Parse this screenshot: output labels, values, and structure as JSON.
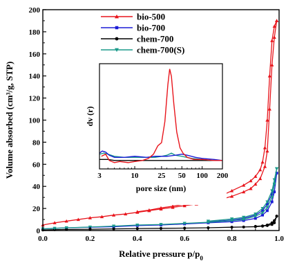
{
  "chart_data": [
    {
      "type": "line",
      "xlabel": "Relative pressure p/p",
      "xlabel_sub": "0",
      "ylabel": "Volume absorbed (cm³/g, STP)",
      "xlim": [
        0.0,
        1.0
      ],
      "ylim": [
        0,
        200
      ],
      "xticks": [
        "0.0",
        "0.2",
        "0.4",
        "0.6",
        "0.8",
        "1.0"
      ],
      "yticks": [
        "0",
        "20",
        "40",
        "60",
        "80",
        "100",
        "120",
        "140",
        "160",
        "180",
        "200"
      ],
      "legend_position": "top-center",
      "grid": false,
      "series": [
        {
          "name": "bio-500",
          "color": "#e8141b",
          "marker": "triangle-up",
          "adsorption": {
            "x": [
              0.0,
              0.05,
              0.1,
              0.15,
              0.2,
              0.25,
              0.3,
              0.35,
              0.4,
              0.45,
              0.5,
              0.55,
              0.6,
              0.65,
              0.7,
              0.75,
              0.8,
              0.85,
              0.88,
              0.9,
              0.92,
              0.94,
              0.95,
              0.96,
              0.97,
              0.98,
              0.99
            ],
            "y": [
              5,
              7,
              8.5,
              10,
              11.5,
              12.5,
              14,
              15,
              16.5,
              18,
              19.5,
              21,
              22.5,
              24,
              26,
              28,
              31,
              35,
              38,
              42,
              47,
              58,
              72,
              110,
              150,
              175,
              190
            ]
          },
          "desorption": {
            "x": [
              0.99,
              0.98,
              0.97,
              0.96,
              0.95,
              0.94,
              0.93,
              0.92,
              0.9,
              0.88,
              0.85,
              0.8,
              0.75,
              0.7,
              0.65,
              0.6,
              0.55,
              0.5,
              0.45,
              0.4
            ],
            "y": [
              190,
              185,
              172,
              140,
              100,
              75,
              62,
              55,
              49,
              45,
              41,
              36,
              31,
              28,
              26,
              24,
              22,
              20.5,
              18.5,
              17
            ]
          }
        },
        {
          "name": "bio-700",
          "color": "#1b1bd6",
          "marker": "square",
          "adsorption": {
            "x": [
              0.0,
              0.05,
              0.1,
              0.2,
              0.3,
              0.4,
              0.5,
              0.6,
              0.7,
              0.8,
              0.85,
              0.9,
              0.93,
              0.95,
              0.97,
              0.98,
              0.99
            ],
            "y": [
              1.5,
              2,
              2.5,
              3,
              3.5,
              4.5,
              5,
              6,
              7,
              8,
              9,
              11,
              14,
              18,
              26,
              35,
              52
            ]
          },
          "desorption": {
            "x": [
              0.99,
              0.98,
              0.97,
              0.95,
              0.93,
              0.9,
              0.85,
              0.8,
              0.7
            ],
            "y": [
              52,
              42,
              33,
              24,
              18,
              14,
              11,
              9.5,
              8
            ]
          }
        },
        {
          "name": "chem-700",
          "color": "#000000",
          "marker": "circle",
          "adsorption": {
            "x": [
              0.0,
              0.05,
              0.1,
              0.2,
              0.3,
              0.4,
              0.5,
              0.6,
              0.7,
              0.8,
              0.85,
              0.9,
              0.93,
              0.95,
              0.97,
              0.98,
              0.99
            ],
            "y": [
              0.5,
              0.8,
              1,
              1.2,
              1.5,
              1.8,
              2,
              2.2,
              2.5,
              3,
              3.2,
              3.5,
              4,
              4.5,
              5.5,
              7,
              13
            ]
          },
          "desorption": {
            "x": [
              0.99,
              0.98,
              0.97,
              0.95,
              0.93,
              0.9
            ],
            "y": [
              13,
              9,
              7,
              5,
              4.2,
              3.8
            ]
          }
        },
        {
          "name": "chem-700(S)",
          "color": "#1a9a8a",
          "marker": "triangle-down",
          "adsorption": {
            "x": [
              0.0,
              0.05,
              0.1,
              0.2,
              0.3,
              0.4,
              0.5,
              0.6,
              0.7,
              0.8,
              0.85,
              0.9,
              0.93,
              0.95,
              0.97,
              0.98,
              0.99
            ],
            "y": [
              1.5,
              2,
              2.5,
              3.2,
              4,
              5,
              5.5,
              6.5,
              7.5,
              9,
              10,
              13,
              16,
              21,
              30,
              42,
              56
            ]
          },
          "desorption": {
            "x": [
              0.99,
              0.98,
              0.97,
              0.95,
              0.93,
              0.9,
              0.85,
              0.8,
              0.7
            ],
            "y": [
              56,
              46,
              36,
              26,
              20,
              15,
              12,
              10.5,
              8.5
            ]
          }
        }
      ]
    },
    {
      "type": "line",
      "inset": true,
      "xlabel": "pore size (nm)",
      "ylabel": "dv (r)",
      "xscale": "log",
      "xlim": [
        3,
        200
      ],
      "xticks": [
        3,
        10,
        25,
        50,
        100,
        200
      ],
      "ylim": [
        0,
        1
      ],
      "yticks": [],
      "series": [
        {
          "name": "bio-500",
          "color": "#e8141b",
          "x": [
            3.2,
            3.7,
            4.2,
            5,
            6,
            8,
            10,
            13,
            16,
            19,
            22,
            25,
            28,
            31,
            33,
            35,
            38,
            42,
            47,
            52,
            60,
            75,
            100,
            150,
            200
          ],
          "y": [
            0.12,
            0.14,
            0.08,
            0.06,
            0.07,
            0.06,
            0.07,
            0.08,
            0.1,
            0.14,
            0.22,
            0.25,
            0.45,
            0.8,
            0.95,
            0.88,
            0.62,
            0.35,
            0.2,
            0.15,
            0.11,
            0.09,
            0.09,
            0.08,
            0.08
          ]
        },
        {
          "name": "bio-700",
          "color": "#1b1bd6",
          "x": [
            3,
            3.3,
            3.7,
            4.2,
            5,
            7,
            10,
            15,
            20,
            30,
            40,
            50,
            60,
            80,
            100,
            150,
            200
          ],
          "y": [
            0.15,
            0.17,
            0.16,
            0.13,
            0.11,
            0.11,
            0.12,
            0.11,
            0.12,
            0.12,
            0.13,
            0.14,
            0.13,
            0.11,
            0.1,
            0.09,
            0.08
          ]
        },
        {
          "name": "chem-700",
          "color": "#000000",
          "x": [
            3,
            4,
            5,
            7,
            10,
            20,
            30,
            50,
            70,
            100,
            150,
            200
          ],
          "y": [
            0.09,
            0.09,
            0.08,
            0.08,
            0.08,
            0.08,
            0.08,
            0.08,
            0.08,
            0.08,
            0.08,
            0.08
          ]
        },
        {
          "name": "chem-700(S)",
          "color": "#1a9a8a",
          "x": [
            3,
            3.5,
            4,
            5,
            7,
            10,
            15,
            20,
            25,
            30,
            35,
            40,
            50,
            70,
            100,
            150,
            200
          ],
          "y": [
            0.14,
            0.15,
            0.14,
            0.12,
            0.11,
            0.11,
            0.11,
            0.11,
            0.12,
            0.13,
            0.15,
            0.13,
            0.12,
            0.1,
            0.09,
            0.08,
            0.08
          ]
        }
      ]
    }
  ]
}
